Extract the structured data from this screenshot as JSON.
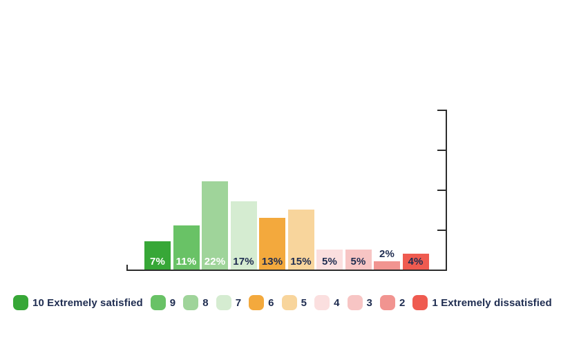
{
  "chart_data": {
    "type": "bar",
    "title": "",
    "unit": "%",
    "categories": [
      "10",
      "9",
      "8",
      "7",
      "6",
      "5",
      "4",
      "3",
      "2",
      "1"
    ],
    "values": [
      7,
      11,
      22,
      17,
      13,
      15,
      5,
      5,
      2,
      4
    ],
    "bars": [
      {
        "category": "10",
        "value": 7,
        "label": "7%",
        "color": "#37a737",
        "label_color": "#ffffff",
        "label_position": "inside"
      },
      {
        "category": "9",
        "value": 11,
        "label": "11%",
        "color": "#69c266",
        "label_color": "#ffffff",
        "label_position": "inside"
      },
      {
        "category": "8",
        "value": 22,
        "label": "22%",
        "color": "#9fd49a",
        "label_color": "#ffffff",
        "label_position": "inside"
      },
      {
        "category": "7",
        "value": 17,
        "label": "17%",
        "color": "#d5ecd1",
        "label_color": "#1e2c50",
        "label_position": "inside"
      },
      {
        "category": "6",
        "value": 13,
        "label": "13%",
        "color": "#f3a93d",
        "label_color": "#1e2c50",
        "label_position": "inside"
      },
      {
        "category": "5",
        "value": 15,
        "label": "15%",
        "color": "#f8d59c",
        "label_color": "#1e2c50",
        "label_position": "inside"
      },
      {
        "category": "4",
        "value": 5,
        "label": "5%",
        "color": "#fbdfdf",
        "label_color": "#1e2c50",
        "label_position": "inside"
      },
      {
        "category": "3",
        "value": 5,
        "label": "5%",
        "color": "#f7c5c4",
        "label_color": "#1e2c50",
        "label_position": "inside"
      },
      {
        "category": "2",
        "value": 2,
        "label": "2%",
        "color": "#f19490",
        "label_color": "#1e2c50",
        "label_position": "above"
      },
      {
        "category": "1",
        "value": 4,
        "label": "4%",
        "color": "#ef5b50",
        "label_color": "#1e2c50",
        "label_position": "inside"
      }
    ],
    "xlabel": "",
    "ylabel": "",
    "ylim": [
      0,
      40
    ],
    "y_ticks": [
      10,
      20,
      30,
      40
    ],
    "y_tick_labels_visible": false,
    "grid": false,
    "legend_position": "bottom",
    "axis_color": "#2b2b2b",
    "text_color": "#1e2c50"
  },
  "legend": {
    "items": [
      {
        "label": "10 Extremely satisfied",
        "color": "#37a737"
      },
      {
        "label": "9",
        "color": "#69c266"
      },
      {
        "label": "8",
        "color": "#9fd49a"
      },
      {
        "label": "7",
        "color": "#d5ecd1"
      },
      {
        "label": "6",
        "color": "#f3a93d"
      },
      {
        "label": "5",
        "color": "#f8d59c"
      },
      {
        "label": "4",
        "color": "#fbdfdf"
      },
      {
        "label": "3",
        "color": "#f7c5c4"
      },
      {
        "label": "2",
        "color": "#f19490"
      },
      {
        "label": "1 Extremely dissatisfied",
        "color": "#ef5b50"
      }
    ]
  }
}
